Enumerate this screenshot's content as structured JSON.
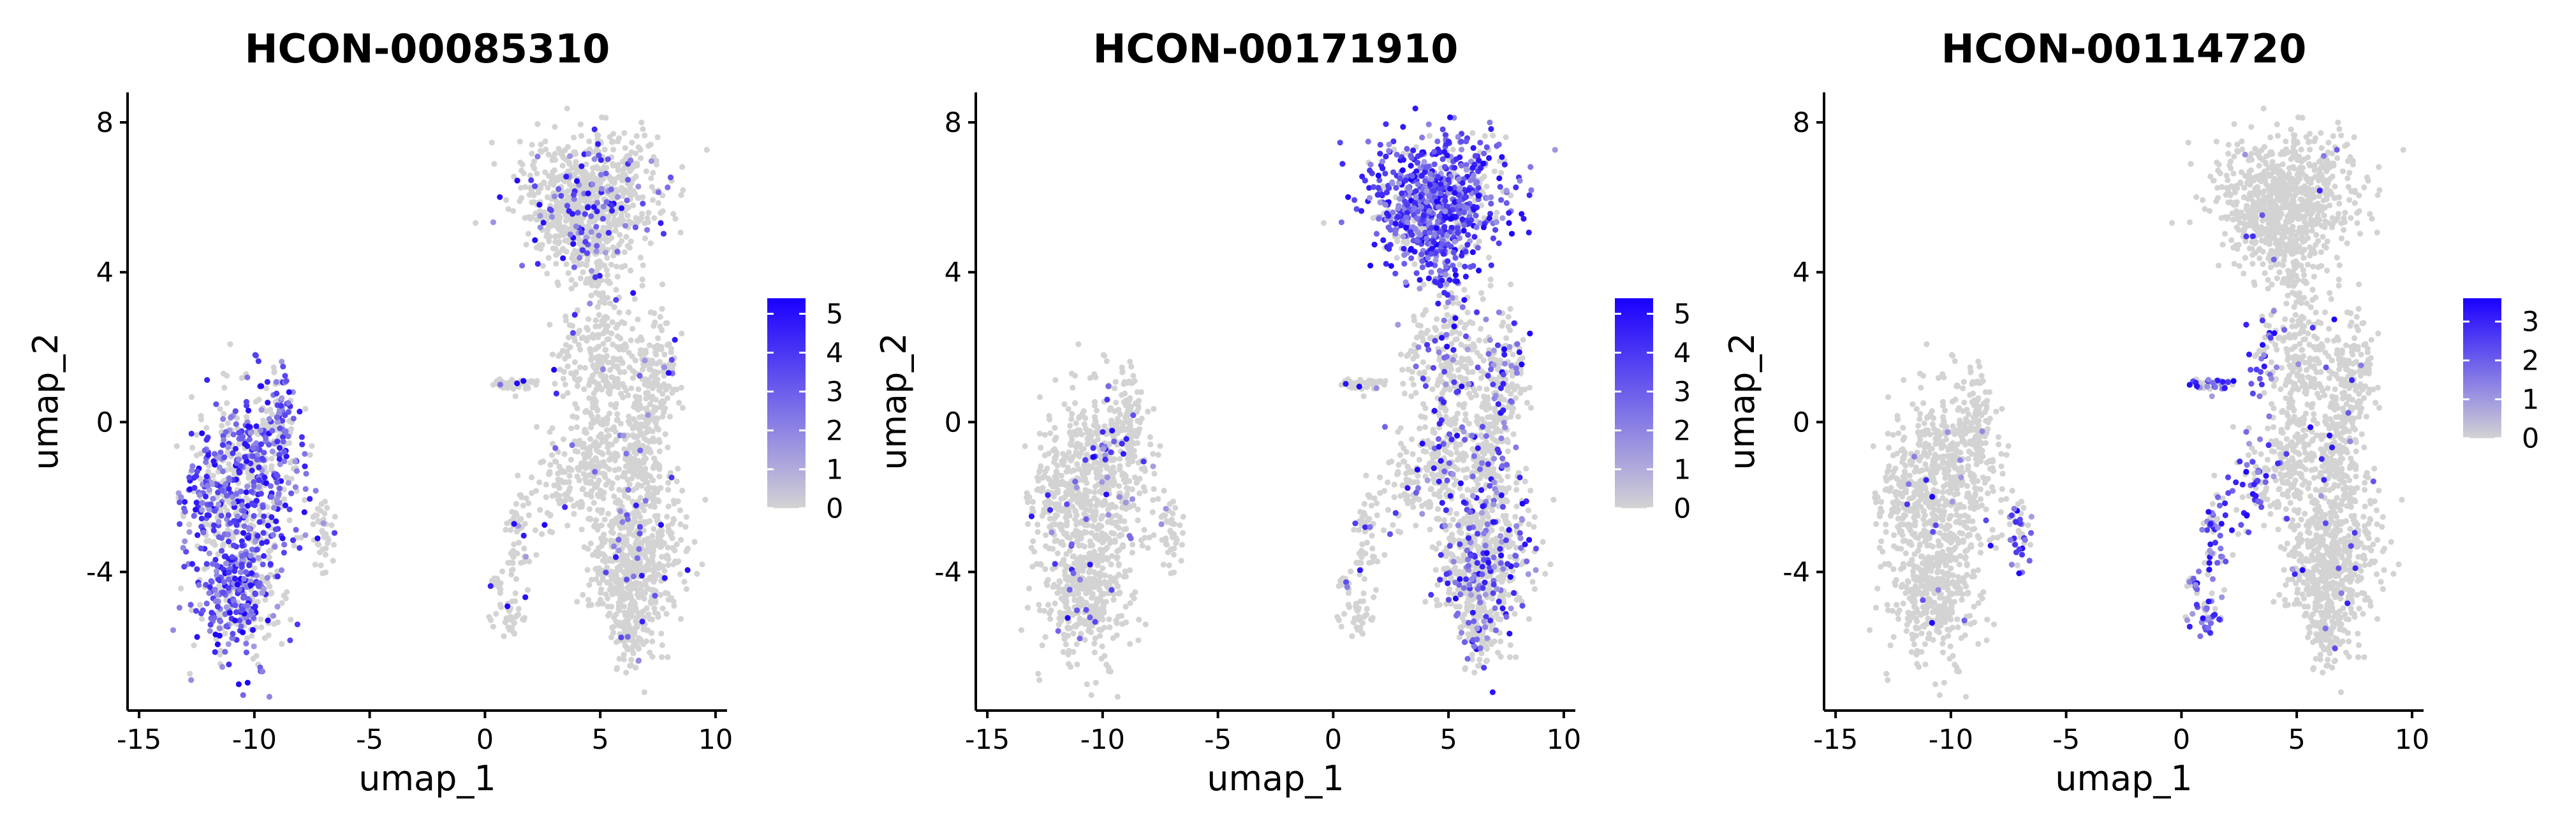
{
  "figure": {
    "background": "#ffffff",
    "point_low_color": "#d3d3d3",
    "point_high_color": "#1a00ff"
  },
  "chart_data": [
    {
      "type": "scatter",
      "title": "HCON-00085310",
      "xlabel": "umap_1",
      "ylabel": "umap_2",
      "xlim": [
        -15.5,
        10.5
      ],
      "ylim": [
        -7.7,
        8.8
      ],
      "x_ticks": [
        -15,
        -10,
        -5,
        0,
        5,
        10
      ],
      "x_tick_labels": [
        "-15",
        "-10",
        "-5",
        "0",
        "5",
        "10"
      ],
      "y_ticks": [
        -4,
        0,
        4,
        8
      ],
      "y_tick_labels": [
        "-4",
        "0",
        "4",
        "8"
      ],
      "color_scale": {
        "min": 0,
        "max": 5.4,
        "ticks": [
          0,
          1,
          2,
          3,
          4,
          5
        ],
        "tick_labels": [
          "0",
          "1",
          "2",
          "3",
          "4",
          "5"
        ],
        "low": "#d3d3d3",
        "high": "#1a00ff"
      },
      "expression_profile": {
        "left_cluster": 0.55,
        "top_right_cluster": 0.12,
        "mid_right_cluster": 0.03,
        "bottom_right_cluster": 0.05,
        "small_islands": 0.06
      }
    },
    {
      "type": "scatter",
      "title": "HCON-00171910",
      "xlabel": "umap_1",
      "ylabel": "umap_2",
      "xlim": [
        -15.5,
        10.5
      ],
      "ylim": [
        -7.7,
        8.8
      ],
      "x_ticks": [
        -15,
        -10,
        -5,
        0,
        5,
        10
      ],
      "x_tick_labels": [
        "-15",
        "-10",
        "-5",
        "0",
        "5",
        "10"
      ],
      "y_ticks": [
        -4,
        0,
        4,
        8
      ],
      "y_tick_labels": [
        "-4",
        "0",
        "4",
        "8"
      ],
      "color_scale": {
        "min": 0,
        "max": 5.4,
        "ticks": [
          0,
          1,
          2,
          3,
          4,
          5
        ],
        "tick_labels": [
          "0",
          "1",
          "2",
          "3",
          "4",
          "5"
        ],
        "low": "#d3d3d3",
        "high": "#1a00ff"
      },
      "expression_profile": {
        "left_cluster": 0.05,
        "top_right_cluster": 0.8,
        "mid_right_cluster": 0.2,
        "bottom_right_cluster": 0.25,
        "small_islands": 0.06
      }
    },
    {
      "type": "scatter",
      "title": "HCON-00114720",
      "xlabel": "umap_1",
      "ylabel": "umap_2",
      "xlim": [
        -15.5,
        10.5
      ],
      "ylim": [
        -7.7,
        8.8
      ],
      "x_ticks": [
        -15,
        -10,
        -5,
        0,
        5,
        10
      ],
      "x_tick_labels": [
        "-15",
        "-10",
        "-5",
        "0",
        "5",
        "10"
      ],
      "y_ticks": [
        -4,
        0,
        4,
        8
      ],
      "y_tick_labels": [
        "-4",
        "0",
        "4",
        "8"
      ],
      "color_scale": {
        "min": 0,
        "max": 3.6,
        "ticks": [
          0,
          1,
          2,
          3
        ],
        "tick_labels": [
          "0",
          "1",
          "2",
          "3"
        ],
        "low": "#d3d3d3",
        "high": "#1a00ff"
      },
      "expression_profile": {
        "left_cluster": 0.015,
        "top_right_cluster": 0.01,
        "mid_right_cluster": 0.015,
        "bottom_right_cluster": 0.015,
        "small_islands": 0.6
      }
    }
  ]
}
